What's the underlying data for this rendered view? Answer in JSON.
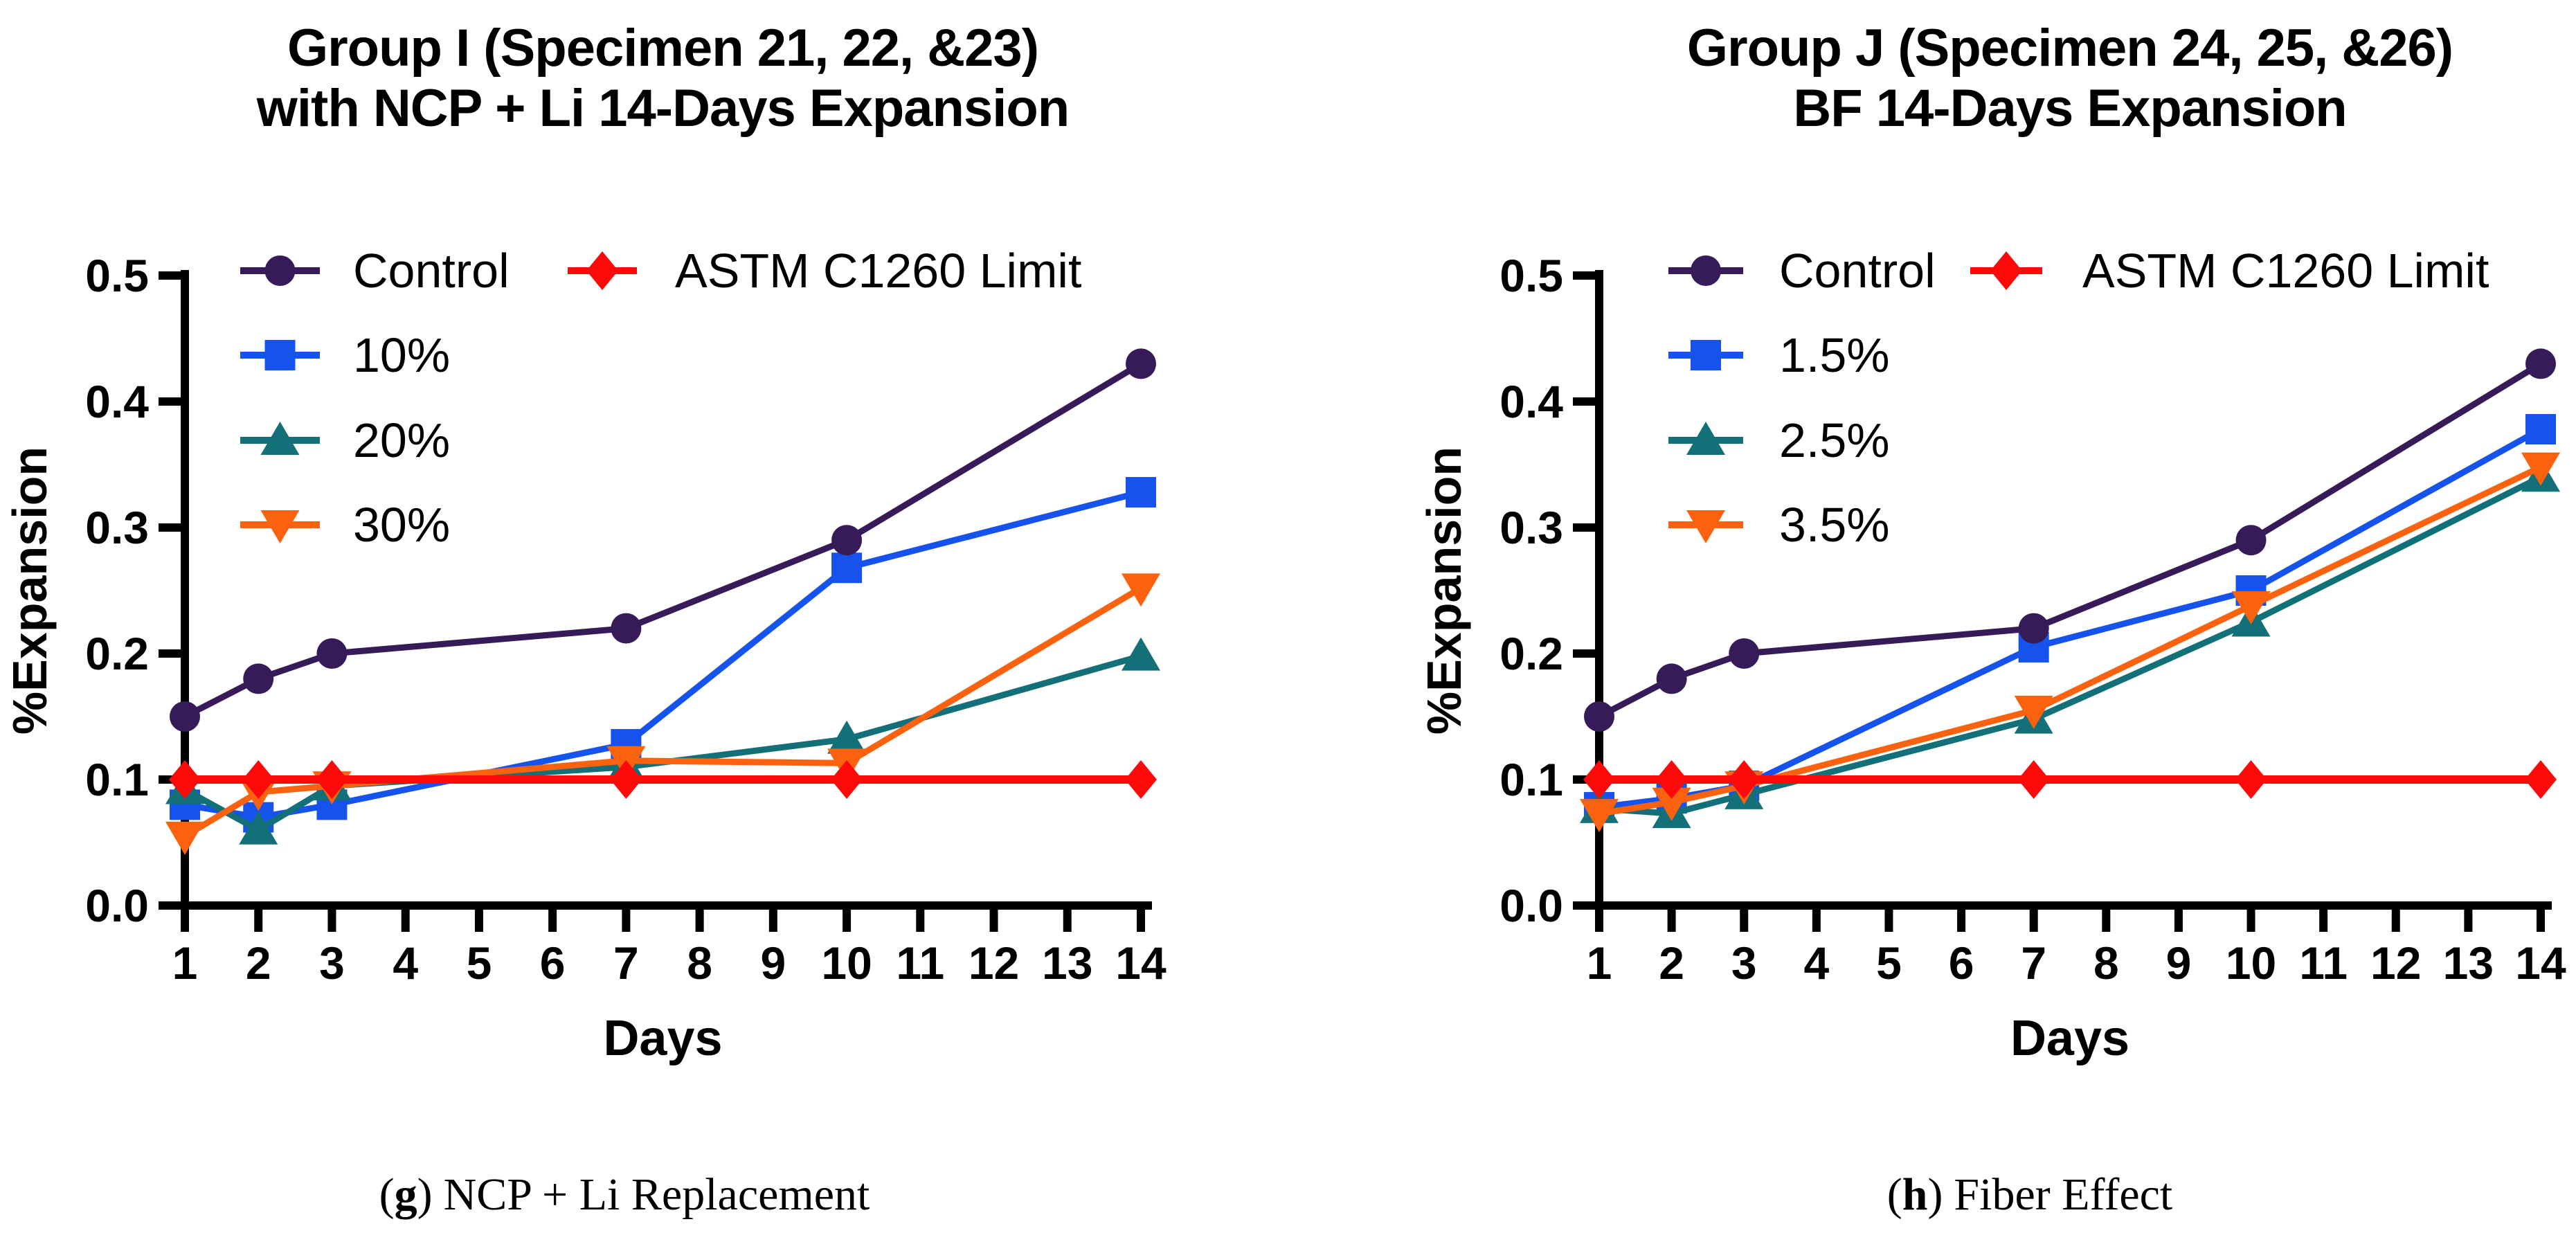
{
  "figure": {
    "background": "#FFFFFF",
    "text_color": "#000000"
  },
  "chart_data": [
    {
      "type": "line",
      "title": "Group I (Specimen 21, 22, &23)\nwith NCP + Li 14-Days Expansion",
      "xlabel": "Days",
      "ylabel": "%Expansion",
      "x": [
        1,
        2,
        3,
        7,
        10,
        14
      ],
      "xlim": [
        1,
        14
      ],
      "ylim": [
        0.0,
        0.5
      ],
      "xticks": [
        "1",
        "2",
        "3",
        "4",
        "5",
        "6",
        "7",
        "8",
        "9",
        "10",
        "11",
        "12",
        "13",
        "14"
      ],
      "yticks": [
        "0.0",
        "0.1",
        "0.2",
        "0.3",
        "0.4",
        "0.5"
      ],
      "grid": false,
      "legend_position": "inside top-left, two columns",
      "series": [
        {
          "name": "Control",
          "marker": "circle",
          "color": "#371A58",
          "values": [
            0.15,
            0.18,
            0.2,
            0.22,
            0.29,
            0.43
          ]
        },
        {
          "name": "10%",
          "marker": "square",
          "color": "#1553EC",
          "values": [
            0.08,
            0.07,
            0.08,
            0.128,
            0.268,
            0.328
          ]
        },
        {
          "name": "20%",
          "marker": "triangle-up",
          "color": "#136F78",
          "values": [
            0.092,
            0.06,
            0.095,
            0.11,
            0.132,
            0.198
          ]
        },
        {
          "name": "30%",
          "marker": "triangle-down",
          "color": "#FB620F",
          "values": [
            0.055,
            0.09,
            0.095,
            0.115,
            0.113,
            0.252
          ]
        },
        {
          "name": "ASTM C1260 Limit",
          "marker": "diamond",
          "color": "#FC0A0A",
          "values": [
            0.1,
            0.1,
            0.1,
            0.1,
            0.1,
            0.1
          ]
        }
      ],
      "caption": {
        "open": "(",
        "label": "g",
        "close": ")",
        "text": "NCP + Li Replacement"
      }
    },
    {
      "type": "line",
      "title": "Group J (Specimen 24, 25, &26)\nBF 14-Days Expansion",
      "xlabel": "Days",
      "ylabel": "%Expansion",
      "x": [
        1,
        2,
        3,
        7,
        10,
        14
      ],
      "xlim": [
        1,
        14
      ],
      "ylim": [
        0.0,
        0.5
      ],
      "xticks": [
        "1",
        "2",
        "3",
        "4",
        "5",
        "6",
        "7",
        "8",
        "9",
        "10",
        "11",
        "12",
        "13",
        "14"
      ],
      "yticks": [
        "0.0",
        "0.1",
        "0.2",
        "0.3",
        "0.4",
        "0.5"
      ],
      "grid": false,
      "legend_position": "inside top-left, two columns",
      "series": [
        {
          "name": "Control",
          "marker": "circle",
          "color": "#371A58",
          "values": [
            0.15,
            0.18,
            0.2,
            0.22,
            0.29,
            0.43
          ]
        },
        {
          "name": "1.5%",
          "marker": "square",
          "color": "#1553EC",
          "values": [
            0.078,
            0.085,
            0.095,
            0.205,
            0.25,
            0.378
          ]
        },
        {
          "name": "2.5%",
          "marker": "triangle-up",
          "color": "#136F78",
          "values": [
            0.077,
            0.073,
            0.088,
            0.148,
            0.225,
            0.34
          ]
        },
        {
          "name": "3.5%",
          "marker": "triangle-down",
          "color": "#FB620F",
          "values": [
            0.073,
            0.082,
            0.095,
            0.155,
            0.238,
            0.348
          ]
        },
        {
          "name": "ASTM C1260 Limit",
          "marker": "diamond",
          "color": "#FC0A0A",
          "values": [
            0.1,
            0.1,
            0.1,
            0.1,
            0.1,
            0.1
          ]
        }
      ],
      "caption": {
        "open": "(",
        "label": "h",
        "close": ")",
        "text": "Fiber Effect"
      }
    }
  ]
}
